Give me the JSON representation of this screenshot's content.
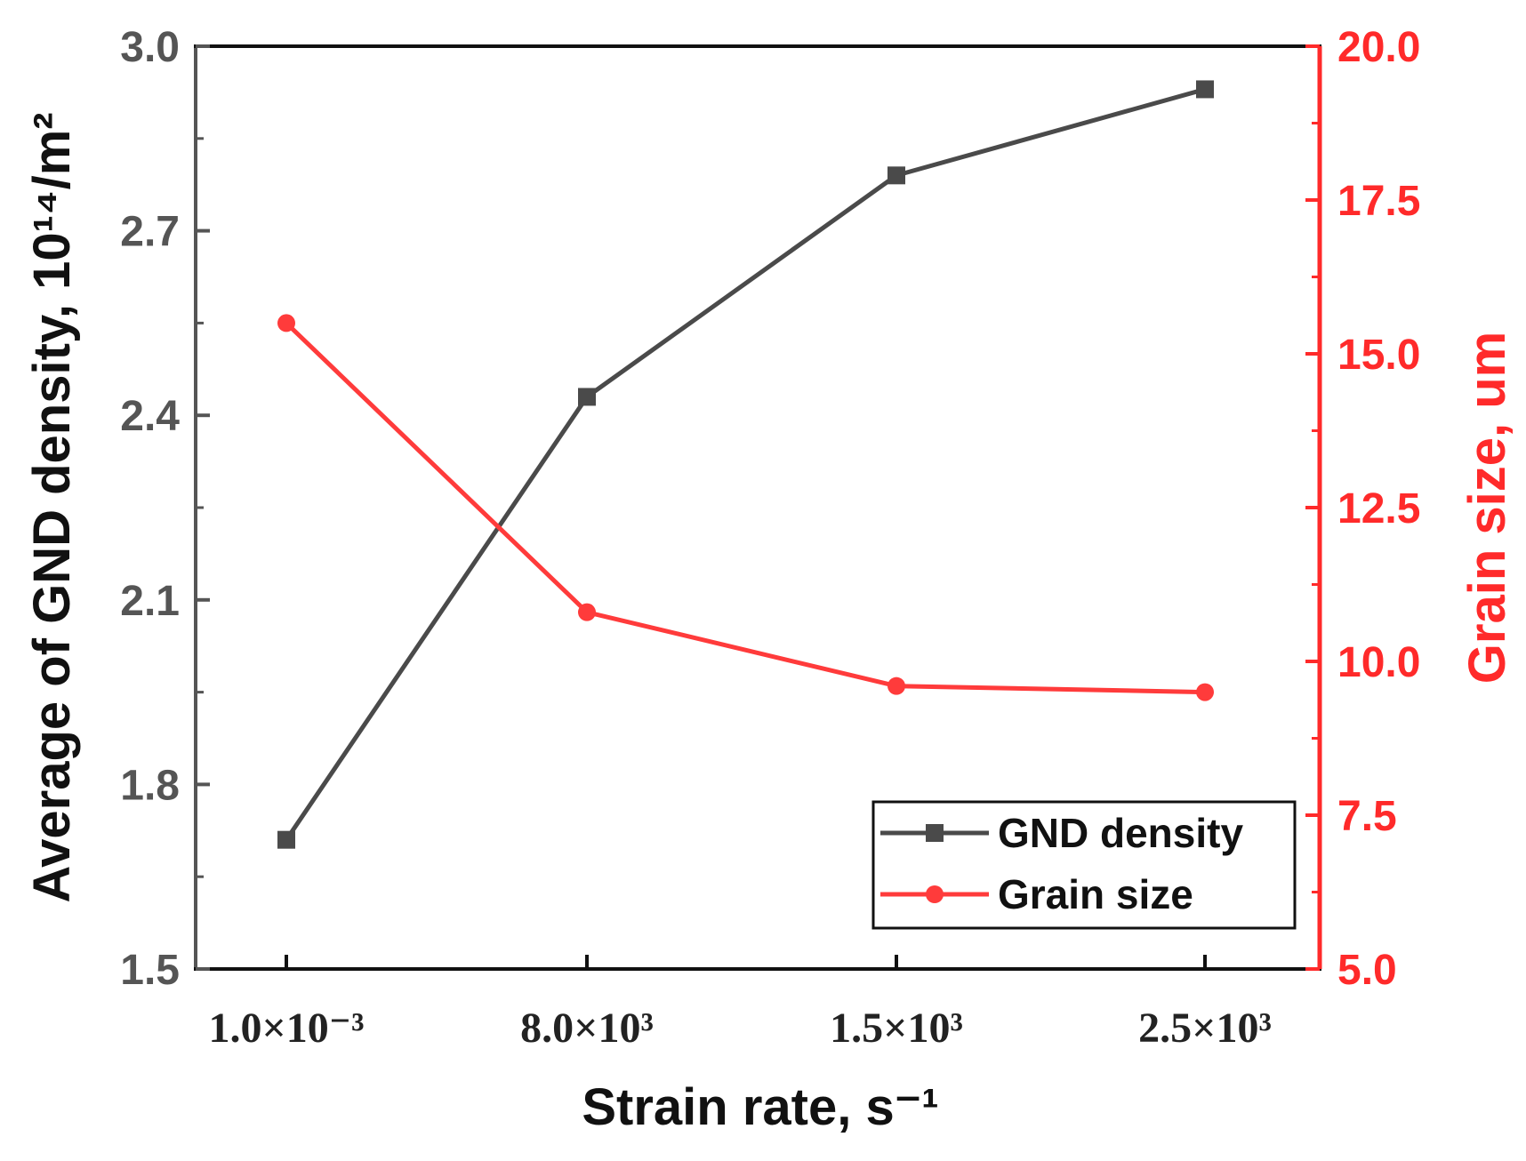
{
  "chart_data": {
    "type": "line",
    "categories": [
      "1.0×10⁻³",
      "8.0×10³",
      "1.5×10³",
      "2.5×10³"
    ],
    "series": [
      {
        "name": "GND density",
        "axis": "left",
        "values": [
          1.71,
          2.43,
          2.79,
          2.93
        ],
        "color": "#4a4a4a",
        "marker": "square"
      },
      {
        "name": "Grain size",
        "axis": "right",
        "values": [
          15.5,
          10.8,
          9.6,
          9.5
        ],
        "color": "#ff3b3b",
        "marker": "circle"
      }
    ],
    "xlabel": "Strain rate, s⁻¹",
    "ylabel_left": "Average of GND density, 10¹⁴/m²",
    "ylabel_right": "Grain size, um",
    "ylim_left": [
      1.5,
      3.0
    ],
    "ylim_right": [
      5.0,
      20.0
    ],
    "yticks_left": [
      "1.5",
      "1.8",
      "2.1",
      "2.4",
      "2.7",
      "3.0"
    ],
    "yticks_right": [
      "5.0",
      "7.5",
      "10.0",
      "12.5",
      "15.0",
      "17.5",
      "20.0"
    ],
    "legend_position": "bottom-right",
    "colors": {
      "left_axis": "#555555",
      "right_axis": "#ff2a2a"
    }
  }
}
